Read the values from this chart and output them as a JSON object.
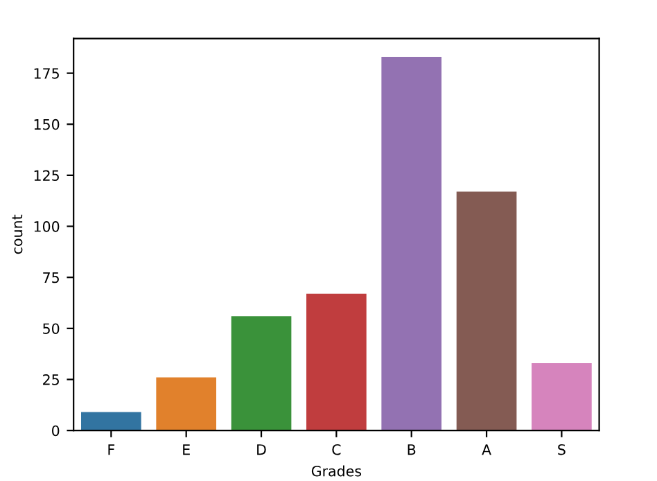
{
  "chart_data": {
    "type": "bar",
    "xlabel": "Grades",
    "ylabel": "count",
    "categories": [
      "F",
      "E",
      "D",
      "C",
      "B",
      "A",
      "S"
    ],
    "values": [
      9,
      26,
      56,
      67,
      183,
      117,
      33
    ],
    "colors": [
      "#3274a1",
      "#e1812c",
      "#3a923a",
      "#c03d3e",
      "#9372b2",
      "#845b53",
      "#d684bd"
    ],
    "ylim": [
      0,
      192
    ],
    "yticks": [
      0,
      25,
      50,
      75,
      100,
      125,
      150,
      175
    ],
    "grid": false
  }
}
